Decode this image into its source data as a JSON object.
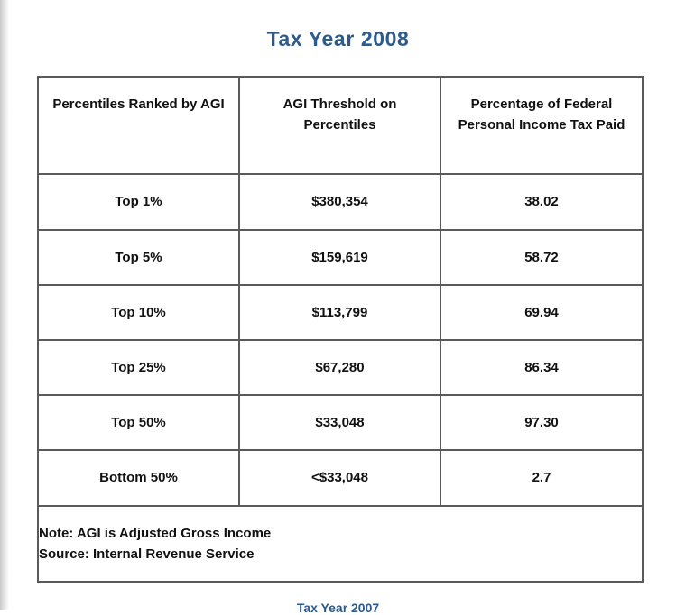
{
  "title": "Tax Year 2008",
  "table": {
    "headers": [
      "Percentiles Ranked by AGI",
      "AGI Threshold on Percentiles",
      "Percentage of Federal Personal Income Tax Paid"
    ],
    "rows": [
      {
        "percentile": "Top 1%",
        "threshold": "$380,354",
        "percentage": "38.02"
      },
      {
        "percentile": "Top 5%",
        "threshold": "$159,619",
        "percentage": "58.72"
      },
      {
        "percentile": "Top 10%",
        "threshold": "$113,799",
        "percentage": "69.94"
      },
      {
        "percentile": "Top 25%",
        "threshold": "$67,280",
        "percentage": "86.34"
      },
      {
        "percentile": "Top 50%",
        "threshold": "$33,048",
        "percentage": "97.30"
      },
      {
        "percentile": "Bottom 50%",
        "threshold": "<$33,048",
        "percentage": "2.7"
      }
    ],
    "note": "Note: AGI is Adjusted Gross Income",
    "source": "Source: Internal Revenue Service"
  },
  "next_title": "Tax Year 2007"
}
